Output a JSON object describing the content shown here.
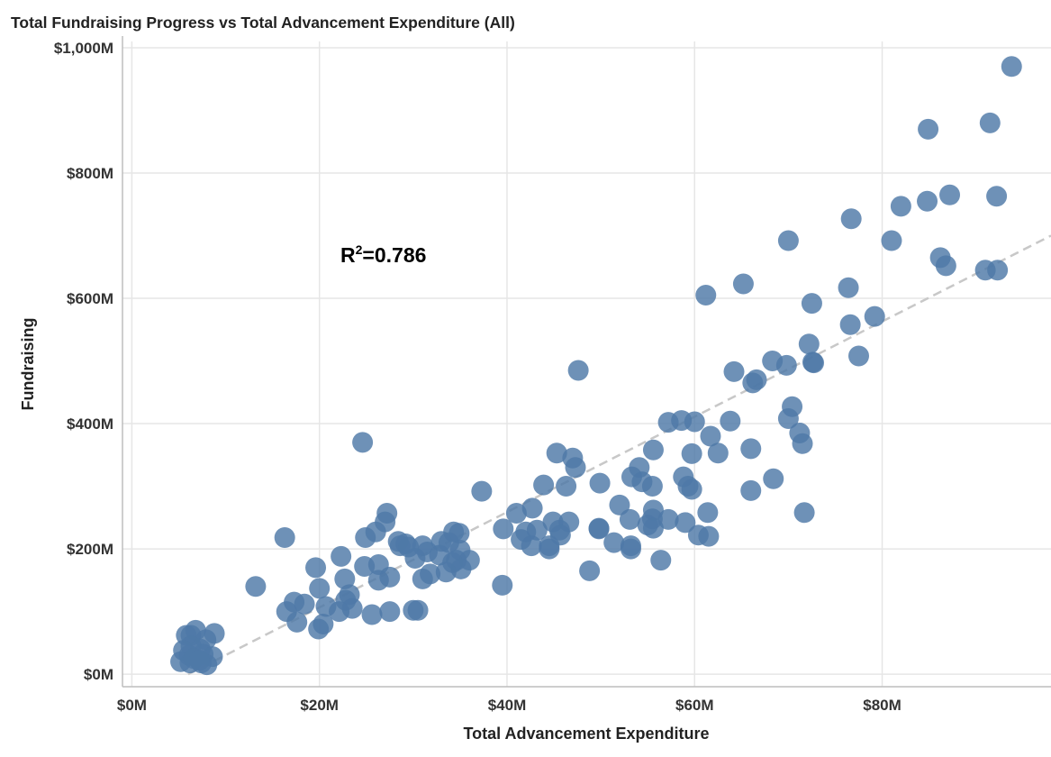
{
  "chart_data": {
    "type": "scatter",
    "title": "Total Fundraising Progress vs Total Advancement Expenditure (All)",
    "xlabel": "Total Advancement Expenditure",
    "ylabel": "Fundraising",
    "xlim": [
      -1,
      98
    ],
    "ylim": [
      -20,
      1010
    ],
    "x_ticks": [
      0,
      20,
      40,
      60,
      80
    ],
    "x_tick_labels": [
      "$0M",
      "$20M",
      "$40M",
      "$60M",
      "$80M"
    ],
    "y_ticks": [
      0,
      200,
      400,
      600,
      800,
      1000
    ],
    "y_tick_labels": [
      "$0M",
      "$200M",
      "$400M",
      "$600M",
      "$800M",
      "$1,000M"
    ],
    "annotation": {
      "prefix": "R",
      "sup": "2",
      "suffix": "=0.786"
    },
    "trendline": {
      "x": [
        6,
        98
      ],
      "y": [
        0,
        700
      ]
    },
    "grid": true,
    "colors": {
      "point": "#4e79a7",
      "trend": "#c8c8c8",
      "grid": "#e6e6e6"
    },
    "points": [
      [
        93.8,
        970
      ],
      [
        91.5,
        880
      ],
      [
        84.9,
        870
      ],
      [
        87.2,
        765
      ],
      [
        92.2,
        763
      ],
      [
        84.8,
        755
      ],
      [
        82.0,
        747
      ],
      [
        76.7,
        727
      ],
      [
        81.0,
        692
      ],
      [
        70.0,
        692
      ],
      [
        86.2,
        665
      ],
      [
        86.8,
        652
      ],
      [
        91.0,
        645
      ],
      [
        92.3,
        645
      ],
      [
        65.2,
        623
      ],
      [
        76.4,
        617
      ],
      [
        61.2,
        605
      ],
      [
        72.5,
        592
      ],
      [
        79.2,
        571
      ],
      [
        76.6,
        558
      ],
      [
        72.2,
        527
      ],
      [
        77.5,
        508
      ],
      [
        68.3,
        500
      ],
      [
        72.7,
        497
      ],
      [
        72.6,
        498
      ],
      [
        69.8,
        493
      ],
      [
        47.6,
        485
      ],
      [
        64.2,
        483
      ],
      [
        66.6,
        470
      ],
      [
        66.2,
        465
      ],
      [
        70.4,
        427
      ],
      [
        70.0,
        408
      ],
      [
        57.2,
        402
      ],
      [
        58.6,
        405
      ],
      [
        60.0,
        403
      ],
      [
        63.8,
        404
      ],
      [
        71.2,
        385
      ],
      [
        61.7,
        380
      ],
      [
        24.6,
        370
      ],
      [
        71.5,
        368
      ],
      [
        55.6,
        358
      ],
      [
        45.3,
        353
      ],
      [
        62.5,
        353
      ],
      [
        59.7,
        352
      ],
      [
        66.0,
        360
      ],
      [
        47.0,
        345
      ],
      [
        47.3,
        330
      ],
      [
        54.1,
        330
      ],
      [
        53.3,
        315
      ],
      [
        58.8,
        315
      ],
      [
        68.4,
        312
      ],
      [
        54.4,
        307
      ],
      [
        55.5,
        300
      ],
      [
        59.3,
        300
      ],
      [
        43.9,
        302
      ],
      [
        46.3,
        300
      ],
      [
        49.9,
        305
      ],
      [
        59.7,
        295
      ],
      [
        37.3,
        292
      ],
      [
        66.0,
        293
      ],
      [
        52.0,
        270
      ],
      [
        55.6,
        262
      ],
      [
        42.7,
        265
      ],
      [
        61.4,
        258
      ],
      [
        71.7,
        258
      ],
      [
        41.0,
        257
      ],
      [
        27.2,
        257
      ],
      [
        55.5,
        248
      ],
      [
        57.2,
        247
      ],
      [
        59.0,
        242
      ],
      [
        46.6,
        243
      ],
      [
        27.0,
        243
      ],
      [
        44.9,
        243
      ],
      [
        53.1,
        247
      ],
      [
        55.0,
        238
      ],
      [
        49.8,
        233
      ],
      [
        49.8,
        232
      ],
      [
        43.2,
        230
      ],
      [
        39.6,
        232
      ],
      [
        45.6,
        230
      ],
      [
        42.0,
        227
      ],
      [
        26.0,
        227
      ],
      [
        55.6,
        233
      ],
      [
        34.3,
        227
      ],
      [
        34.9,
        225
      ],
      [
        60.4,
        222
      ],
      [
        61.5,
        220
      ],
      [
        24.9,
        218
      ],
      [
        16.3,
        218
      ],
      [
        45.7,
        222
      ],
      [
        51.4,
        210
      ],
      [
        41.5,
        215
      ],
      [
        28.4,
        212
      ],
      [
        29.2,
        208
      ],
      [
        31.0,
        205
      ],
      [
        33.0,
        212
      ],
      [
        33.8,
        210
      ],
      [
        28.6,
        205
      ],
      [
        42.6,
        205
      ],
      [
        44.5,
        200
      ],
      [
        44.5,
        205
      ],
      [
        53.2,
        205
      ],
      [
        53.2,
        200
      ],
      [
        29.5,
        203
      ],
      [
        35.0,
        198
      ],
      [
        31.5,
        195
      ],
      [
        32.8,
        190
      ],
      [
        34.6,
        182
      ],
      [
        30.2,
        185
      ],
      [
        22.3,
        188
      ],
      [
        36.0,
        182
      ],
      [
        56.4,
        182
      ],
      [
        34.2,
        178
      ],
      [
        35.1,
        168
      ],
      [
        26.3,
        175
      ],
      [
        24.8,
        172
      ],
      [
        19.6,
        170
      ],
      [
        48.8,
        165
      ],
      [
        33.5,
        163
      ],
      [
        31.8,
        160
      ],
      [
        27.5,
        155
      ],
      [
        31.0,
        152
      ],
      [
        22.7,
        152
      ],
      [
        26.3,
        150
      ],
      [
        39.5,
        142
      ],
      [
        13.2,
        140
      ],
      [
        20.0,
        137
      ],
      [
        23.2,
        127
      ],
      [
        22.8,
        118
      ],
      [
        17.3,
        115
      ],
      [
        18.4,
        112
      ],
      [
        20.7,
        108
      ],
      [
        23.5,
        105
      ],
      [
        16.5,
        100
      ],
      [
        22.1,
        100
      ],
      [
        27.5,
        100
      ],
      [
        30.0,
        102
      ],
      [
        30.5,
        102
      ],
      [
        25.6,
        95
      ],
      [
        17.6,
        83
      ],
      [
        20.4,
        80
      ],
      [
        19.9,
        72
      ],
      [
        6.8,
        70
      ],
      [
        8.8,
        65
      ],
      [
        5.8,
        62
      ],
      [
        6.3,
        62
      ],
      [
        7.9,
        55
      ],
      [
        6.3,
        45
      ],
      [
        7.3,
        40
      ],
      [
        5.5,
        38
      ],
      [
        7.6,
        32
      ],
      [
        6.1,
        30
      ],
      [
        8.6,
        28
      ],
      [
        5.2,
        20
      ],
      [
        6.2,
        18
      ],
      [
        7.4,
        18
      ],
      [
        8.0,
        15
      ],
      [
        6.6,
        25
      ],
      [
        7.2,
        22
      ]
    ]
  }
}
